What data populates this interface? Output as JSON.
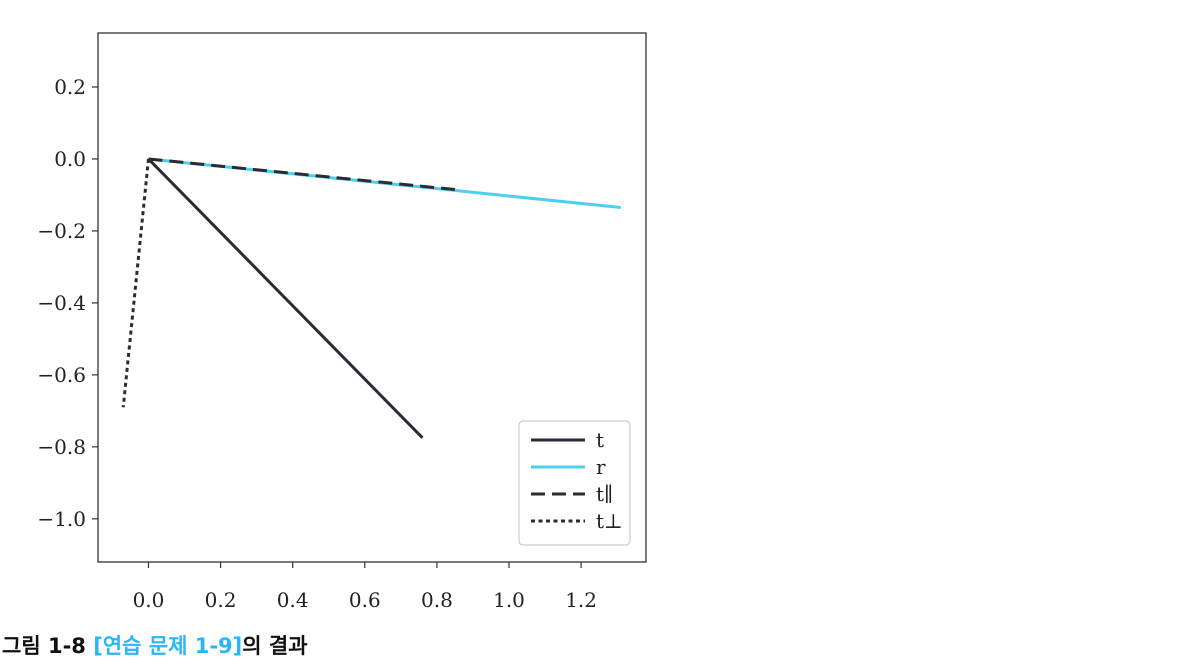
{
  "chart_data": {
    "type": "line",
    "xlim": [
      -0.14,
      1.38
    ],
    "ylim": [
      -1.12,
      0.35
    ],
    "xticks": [
      0.0,
      0.2,
      0.4,
      0.6,
      0.8,
      1.0,
      1.2
    ],
    "xtick_labels": [
      "0.0",
      "0.2",
      "0.4",
      "0.6",
      "0.8",
      "1.0",
      "1.2"
    ],
    "yticks": [
      0.2,
      0.0,
      -0.2,
      -0.4,
      -0.6,
      -0.8,
      -1.0
    ],
    "ytick_labels": [
      "0.2",
      "0.0",
      "−0.2",
      "−0.4",
      "−0.6",
      "−0.8",
      "−1.0"
    ],
    "grid": false,
    "legend_position": "lower-right",
    "series": [
      {
        "name": "t",
        "style": "solid",
        "color": "#2b2b33",
        "x": [
          0.0,
          0.76
        ],
        "y": [
          0.0,
          -0.775
        ]
      },
      {
        "name": "r",
        "style": "solid",
        "color": "#4dd0f0",
        "x": [
          0.0,
          1.31
        ],
        "y": [
          0.0,
          -0.135
        ]
      },
      {
        "name": "t∥",
        "style": "dashed",
        "color": "#2b2b33",
        "x": [
          0.0,
          0.85
        ],
        "y": [
          0.0,
          -0.085
        ]
      },
      {
        "name": "t⊥",
        "style": "dotted",
        "color": "#2b2b33",
        "x": [
          0.0,
          -0.07
        ],
        "y": [
          0.0,
          -0.69
        ]
      }
    ]
  },
  "caption": {
    "prefix": "그림 1-8 ",
    "ref": "[연습 문제 1-9]",
    "suffix": "의 결과"
  }
}
